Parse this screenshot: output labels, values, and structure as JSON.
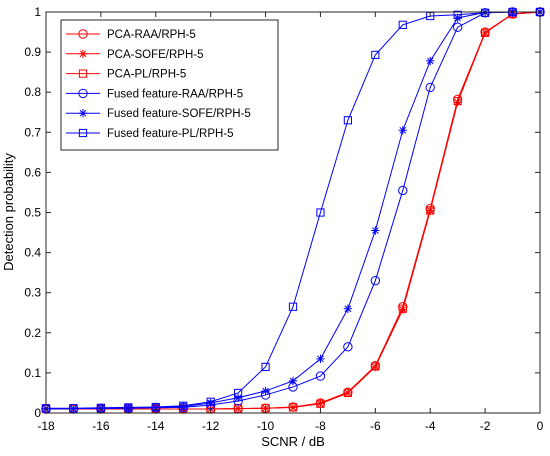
{
  "chart_data": {
    "type": "line",
    "xlabel": "SCNR / dB",
    "ylabel": "Detection probability",
    "xlim": [
      -18,
      0
    ],
    "ylim": [
      0,
      1
    ],
    "xticks": [
      "-18",
      "-16",
      "-14",
      "-12",
      "-10",
      "-8",
      "-6",
      "-4",
      "-2",
      "0"
    ],
    "yticks": [
      "0",
      "0.1",
      "0.2",
      "0.3",
      "0.4",
      "0.5",
      "0.6",
      "0.7",
      "0.8",
      "0.9",
      "1"
    ],
    "grid": false,
    "legend_position": "top-left",
    "x": [
      -18,
      -17,
      -16,
      -15,
      -14,
      -13,
      -12,
      -11,
      -10,
      -9,
      -8,
      -7,
      -6,
      -5,
      -4,
      -3,
      -2,
      -1,
      0
    ],
    "series": [
      {
        "name": "PCA-RAA/RPH-5",
        "color": "#ff0000",
        "marker": "circle",
        "values": [
          0.01,
          0.01,
          0.01,
          0.01,
          0.01,
          0.01,
          0.01,
          0.011,
          0.012,
          0.015,
          0.025,
          0.052,
          0.118,
          0.265,
          0.51,
          0.782,
          0.95,
          0.995,
          1.0
        ]
      },
      {
        "name": "PCA-SOFE/RPH-5",
        "color": "#ff0000",
        "marker": "star",
        "values": [
          0.01,
          0.01,
          0.01,
          0.01,
          0.01,
          0.01,
          0.01,
          0.011,
          0.012,
          0.014,
          0.024,
          0.05,
          0.115,
          0.258,
          0.505,
          0.775,
          0.948,
          0.995,
          1.0
        ]
      },
      {
        "name": "PCA-PL/RPH-5",
        "color": "#ff0000",
        "marker": "square",
        "values": [
          0.01,
          0.01,
          0.01,
          0.01,
          0.01,
          0.01,
          0.01,
          0.011,
          0.012,
          0.014,
          0.023,
          0.05,
          0.116,
          0.26,
          0.505,
          0.778,
          0.948,
          0.995,
          1.0
        ]
      },
      {
        "name": "Fused feature-RAA/RPH-5",
        "color": "#0000ff",
        "marker": "circle",
        "values": [
          0.01,
          0.011,
          0.011,
          0.012,
          0.013,
          0.014,
          0.02,
          0.03,
          0.045,
          0.065,
          0.092,
          0.165,
          0.33,
          0.555,
          0.812,
          0.962,
          0.998,
          1.0,
          1.0
        ]
      },
      {
        "name": "Fused feature-SOFE/RPH-5",
        "color": "#0000ff",
        "marker": "star",
        "values": [
          0.011,
          0.011,
          0.012,
          0.013,
          0.014,
          0.016,
          0.025,
          0.038,
          0.055,
          0.08,
          0.135,
          0.26,
          0.455,
          0.705,
          0.878,
          0.985,
          0.999,
          1.0,
          1.0
        ]
      },
      {
        "name": "Fused feature-PL/RPH-5",
        "color": "#0000ff",
        "marker": "square",
        "values": [
          0.012,
          0.012,
          0.013,
          0.014,
          0.015,
          0.018,
          0.028,
          0.05,
          0.115,
          0.265,
          0.5,
          0.73,
          0.893,
          0.968,
          0.99,
          0.993,
          0.998,
          1.0,
          1.0
        ]
      }
    ]
  }
}
